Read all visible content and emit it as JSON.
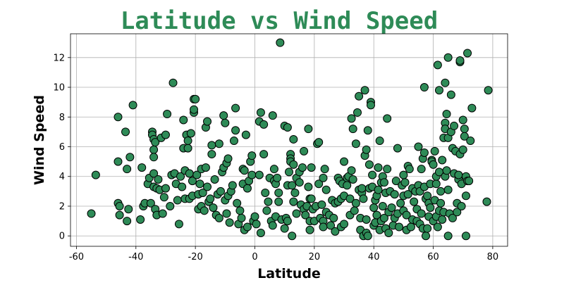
{
  "chart_data": {
    "type": "scatter",
    "title": "Latitude vs Wind Speed",
    "xlabel": "Latitude",
    "ylabel": "Wind Speed",
    "xlim": [
      -62,
      85
    ],
    "ylim": [
      -0.7,
      13.6
    ],
    "xticks": [
      -60,
      -40,
      -20,
      0,
      20,
      40,
      60,
      80
    ],
    "yticks": [
      0,
      2,
      4,
      6,
      8,
      10,
      12
    ],
    "grid": true,
    "colors": {
      "title": "#2e8b57",
      "marker_fill": "#2e8b57",
      "marker_edge": "#000000"
    },
    "points": [
      [
        -55,
        1.5
      ],
      [
        -53.5,
        4.1
      ],
      [
        -46,
        8
      ],
      [
        -46,
        5
      ],
      [
        -46,
        2.2
      ],
      [
        -45.5,
        2.0
      ],
      [
        -45.5,
        1.4
      ],
      [
        -43.5,
        7
      ],
      [
        -43,
        1.0
      ],
      [
        -43,
        4.5
      ],
      [
        -42.5,
        1.8
      ],
      [
        -42,
        5.3
      ],
      [
        -41,
        8.8
      ],
      [
        -38.5,
        1.1
      ],
      [
        -38,
        4.6
      ],
      [
        -37.5,
        2.0
      ],
      [
        -37,
        2.2
      ],
      [
        -36,
        3.5
      ],
      [
        -35.5,
        3.9
      ],
      [
        -35,
        2.2
      ],
      [
        -34.5,
        7.0
      ],
      [
        -34.5,
        6.8
      ],
      [
        -34,
        6.5
      ],
      [
        -34,
        5.8
      ],
      [
        -34,
        5.3
      ],
      [
        -34,
        4.2
      ],
      [
        -34,
        3.3
      ],
      [
        -33.5,
        1.8
      ],
      [
        -33.5,
        6.3
      ],
      [
        -33,
        3.2
      ],
      [
        -33,
        1.4
      ],
      [
        -32.5,
        3.8
      ],
      [
        -32,
        3.1
      ],
      [
        -31.5,
        6.6
      ],
      [
        -31,
        1.5
      ],
      [
        -30.5,
        2.6
      ],
      [
        -30,
        6.8
      ],
      [
        -30,
        3.2
      ],
      [
        -29.5,
        8.2
      ],
      [
        -28.5,
        2.0
      ],
      [
        -28,
        4.1
      ],
      [
        -27.5,
        10.3
      ],
      [
        -27,
        4.2
      ],
      [
        -26.5,
        3.5
      ],
      [
        -26,
        2.4
      ],
      [
        -25.5,
        0.8
      ],
      [
        -25,
        4.0
      ],
      [
        -24.5,
        3.3
      ],
      [
        -24,
        5.9
      ],
      [
        -24,
        7.8
      ],
      [
        -23.5,
        2.5
      ],
      [
        -23.5,
        4.4
      ],
      [
        -23,
        6.8
      ],
      [
        -22.5,
        5.9
      ],
      [
        -22.5,
        6.4
      ],
      [
        -22,
        4.2
      ],
      [
        -22,
        2.5
      ],
      [
        -21.5,
        6.9
      ],
      [
        -21,
        3.7
      ],
      [
        -21,
        2.7
      ],
      [
        -20.5,
        8.3
      ],
      [
        -20.5,
        8.5
      ],
      [
        -20.5,
        9.2
      ],
      [
        -20,
        9.2
      ],
      [
        -19.5,
        4.1
      ],
      [
        -19,
        2.8
      ],
      [
        -19,
        1.8
      ],
      [
        -18.5,
        3.5
      ],
      [
        -18,
        2.0
      ],
      [
        -18,
        4.5
      ],
      [
        -17.5,
        2.9
      ],
      [
        -17,
        1.7
      ],
      [
        -16.5,
        4.6
      ],
      [
        -16.5,
        7.3
      ],
      [
        -16,
        7.7
      ],
      [
        -16,
        3.3
      ],
      [
        -15.5,
        2.3
      ],
      [
        -15,
        2.5
      ],
      [
        -14.5,
        5.5
      ],
      [
        -14.5,
        6.1
      ],
      [
        -14,
        1.9
      ],
      [
        -13.5,
        3.8
      ],
      [
        -13,
        1.4
      ],
      [
        -12.5,
        2.8
      ],
      [
        -12,
        1.2
      ],
      [
        -12,
        6.2
      ],
      [
        -11.5,
        3.0
      ],
      [
        -11,
        4.3
      ],
      [
        -10.5,
        8.1
      ],
      [
        -10.5,
        4.6
      ],
      [
        -10,
        2.4
      ],
      [
        -10,
        7.6
      ],
      [
        -9.5,
        4.9
      ],
      [
        -9.5,
        1.5
      ],
      [
        -9,
        2.7
      ],
      [
        -9,
        5.2
      ],
      [
        -8.5,
        0.9
      ],
      [
        -8,
        3.0
      ],
      [
        -7.5,
        3.4
      ],
      [
        -7,
        6.4
      ],
      [
        -6.5,
        8.6
      ],
      [
        -6.5,
        7.1
      ],
      [
        -6,
        2.2
      ],
      [
        -5.5,
        0.8
      ],
      [
        -5,
        1.7
      ],
      [
        -4.5,
        1.2
      ],
      [
        -4,
        3.5
      ],
      [
        -4,
        4.5
      ],
      [
        -3.5,
        4.4
      ],
      [
        -3.5,
        0.4
      ],
      [
        -3,
        6.8
      ],
      [
        -2.5,
        3.2
      ],
      [
        -2.5,
        0.6
      ],
      [
        -2,
        3.7
      ],
      [
        -1.5,
        5.0
      ],
      [
        -1,
        5.4
      ],
      [
        -1,
        4.1
      ],
      [
        -0.5,
        1.0
      ],
      [
        0,
        1.3
      ],
      [
        0.5,
        0.8
      ],
      [
        1.5,
        4.1
      ],
      [
        1.5,
        7.7
      ],
      [
        2,
        8.3
      ],
      [
        2,
        0.2
      ],
      [
        3,
        7.5
      ],
      [
        3,
        5.5
      ],
      [
        3.5,
        2.9
      ],
      [
        4,
        1.7
      ],
      [
        4.5,
        2.3
      ],
      [
        5,
        3.9
      ],
      [
        5.5,
        1.0
      ],
      [
        6,
        0.7
      ],
      [
        6,
        8.1
      ],
      [
        6.5,
        3.7
      ],
      [
        6.5,
        4.5
      ],
      [
        7,
        3.5
      ],
      [
        7,
        1.3
      ],
      [
        7.5,
        3.9
      ],
      [
        8,
        2.9
      ],
      [
        8,
        2.3
      ],
      [
        9,
        1.1
      ],
      [
        10,
        7.4
      ],
      [
        10,
        0.5
      ],
      [
        10.5,
        1.2
      ],
      [
        11,
        7.3
      ],
      [
        11,
        3.4
      ],
      [
        11,
        1.0
      ],
      [
        11.5,
        4.3
      ],
      [
        12,
        5.5
      ],
      [
        12,
        5.2
      ],
      [
        12,
        5.0
      ],
      [
        12.5,
        0.0
      ],
      [
        12.5,
        3.4
      ],
      [
        13,
        4.8
      ],
      [
        13,
        6.5
      ],
      [
        13,
        2.3
      ],
      [
        13.5,
        2.9
      ],
      [
        14,
        3.9
      ],
      [
        14,
        1.5
      ],
      [
        15,
        4.3
      ],
      [
        15,
        3.6
      ],
      [
        15.5,
        2.1
      ],
      [
        16,
        4.6
      ],
      [
        16.5,
        5.7
      ],
      [
        16.5,
        1.8
      ],
      [
        17,
        1.4
      ],
      [
        17.5,
        2.0
      ],
      [
        18,
        7.2
      ],
      [
        18,
        3.3
      ],
      [
        18.5,
        2.5
      ],
      [
        18.5,
        1.0
      ],
      [
        18.5,
        0.4
      ],
      [
        19,
        4.6
      ],
      [
        19,
        2.5
      ],
      [
        19.5,
        1.8
      ],
      [
        20,
        1.0
      ],
      [
        20.5,
        2.0
      ],
      [
        21,
        6.2
      ],
      [
        21.5,
        6.3
      ],
      [
        21.5,
        3.5
      ],
      [
        22,
        1.2
      ],
      [
        22.5,
        2.1
      ],
      [
        23,
        3.9
      ],
      [
        23,
        1.0
      ],
      [
        23,
        0.6
      ],
      [
        23.5,
        4.5
      ],
      [
        24,
        1.6
      ],
      [
        24,
        3.1
      ],
      [
        25,
        1.4
      ],
      [
        25.5,
        0.7
      ],
      [
        26,
        2.4
      ],
      [
        26.5,
        1.2
      ],
      [
        27,
        0.3
      ],
      [
        27,
        2.2
      ],
      [
        28,
        2.3
      ],
      [
        28,
        3.9
      ],
      [
        28.5,
        3.7
      ],
      [
        29,
        0.6
      ],
      [
        29,
        2.5
      ],
      [
        29.5,
        3.5
      ],
      [
        30,
        0.8
      ],
      [
        30,
        2.7
      ],
      [
        30,
        5.0
      ],
      [
        31,
        3.9
      ],
      [
        31,
        3.4
      ],
      [
        31.5,
        4.0
      ],
      [
        32,
        1.4
      ],
      [
        32,
        2.5
      ],
      [
        32.5,
        7.9
      ],
      [
        32.5,
        4.4
      ],
      [
        33,
        3.8
      ],
      [
        33,
        7.2
      ],
      [
        33.5,
        1.7
      ],
      [
        34,
        2.2
      ],
      [
        34,
        6.2
      ],
      [
        34.5,
        8.3
      ],
      [
        35,
        9.4
      ],
      [
        35,
        3.1
      ],
      [
        35.5,
        0.4
      ],
      [
        35.5,
        1.2
      ],
      [
        36,
        2.9
      ],
      [
        36,
        3.2
      ],
      [
        36.5,
        0.0
      ],
      [
        36.5,
        2.5
      ],
      [
        37,
        5.4
      ],
      [
        37,
        9.8
      ],
      [
        37.5,
        5.8
      ],
      [
        37.5,
        1.1
      ],
      [
        37.5,
        0.2
      ],
      [
        38,
        0.0
      ],
      [
        38,
        7.1
      ],
      [
        38.5,
        4.8
      ],
      [
        38.5,
        3.2
      ],
      [
        39,
        9.0
      ],
      [
        39,
        8.8
      ],
      [
        39.5,
        4.1
      ],
      [
        39.5,
        3.3
      ],
      [
        40,
        1.9
      ],
      [
        40,
        0.7
      ],
      [
        40.5,
        2.4
      ],
      [
        40.5,
        0.9
      ],
      [
        41,
        1.4
      ],
      [
        41,
        2.7
      ],
      [
        41.5,
        4.6
      ],
      [
        41.5,
        3.1
      ],
      [
        42,
        6.4
      ],
      [
        42,
        0.4
      ],
      [
        42.5,
        1.0
      ],
      [
        42.5,
        3.6
      ],
      [
        43,
        4.0
      ],
      [
        43,
        2.0
      ],
      [
        43.5,
        3.6
      ],
      [
        43.5,
        1.2
      ],
      [
        44,
        2.9
      ],
      [
        44,
        0.5
      ],
      [
        44.5,
        7.9
      ],
      [
        44.5,
        4.5
      ],
      [
        45,
        1.6
      ],
      [
        45,
        0.2
      ],
      [
        45.5,
        3.0
      ],
      [
        46,
        1.9
      ],
      [
        46.5,
        0.7
      ],
      [
        47,
        2.8
      ],
      [
        47,
        1.2
      ],
      [
        47.5,
        3.7
      ],
      [
        48,
        1.5
      ],
      [
        48,
        5.9
      ],
      [
        48.5,
        0.6
      ],
      [
        49,
        2.2
      ],
      [
        49.5,
        3.4
      ],
      [
        50,
        2.7
      ],
      [
        50,
        1.7
      ],
      [
        50,
        4.1
      ],
      [
        50.5,
        3.6
      ],
      [
        51,
        0.4
      ],
      [
        51,
        1.4
      ],
      [
        51.5,
        2.8
      ],
      [
        51.5,
        4.7
      ],
      [
        52,
        4.5
      ],
      [
        52.5,
        0.6
      ],
      [
        53,
        3.2
      ],
      [
        53,
        1.1
      ],
      [
        53.5,
        2.3
      ],
      [
        54,
        3.0
      ],
      [
        54.5,
        1.8
      ],
      [
        54.5,
        1.0
      ],
      [
        55,
        6.0
      ],
      [
        55,
        3.4
      ],
      [
        55.5,
        0.8
      ],
      [
        55.5,
        3.0
      ],
      [
        56,
        4.5
      ],
      [
        56,
        1.5
      ],
      [
        56.5,
        5.2
      ],
      [
        56.5,
        0.5
      ],
      [
        57,
        10.0
      ],
      [
        57,
        3.3
      ],
      [
        57,
        5.6
      ],
      [
        57.5,
        2.5
      ],
      [
        57.5,
        0.0
      ],
      [
        58,
        2.7
      ],
      [
        58,
        0.5
      ],
      [
        58.5,
        1.3
      ],
      [
        58.5,
        2.2
      ],
      [
        59,
        3.5
      ],
      [
        59,
        1.9
      ],
      [
        59.5,
        5.1
      ],
      [
        59.5,
        5.0
      ],
      [
        60,
        4.8
      ],
      [
        60,
        1.0
      ],
      [
        60.5,
        5.7
      ],
      [
        60.5,
        2.4
      ],
      [
        61,
        3.5
      ],
      [
        61,
        1.3
      ],
      [
        61,
        4.0
      ],
      [
        61.5,
        11.5
      ],
      [
        61.5,
        0.6
      ],
      [
        62,
        9.8
      ],
      [
        62,
        4.3
      ],
      [
        62,
        1.7
      ],
      [
        62.5,
        2.2
      ],
      [
        62.5,
        3.0
      ],
      [
        63,
        1.1
      ],
      [
        63,
        5.1
      ],
      [
        63.5,
        6.6
      ],
      [
        63.5,
        1.6
      ],
      [
        64,
        10.3
      ],
      [
        64,
        7.6
      ],
      [
        64,
        7.2
      ],
      [
        64,
        4.0
      ],
      [
        64.5,
        8.2
      ],
      [
        64.5,
        4.4
      ],
      [
        65,
        12.0
      ],
      [
        65,
        0.0
      ],
      [
        65,
        3.1
      ],
      [
        65,
        6.6
      ],
      [
        65.5,
        1.5
      ],
      [
        66,
        9.5
      ],
      [
        66,
        7.0
      ],
      [
        66.5,
        5.9
      ],
      [
        66.5,
        1.2
      ],
      [
        67,
        7.4
      ],
      [
        67,
        4.2
      ],
      [
        67.5,
        5.7
      ],
      [
        68,
        1.6
      ],
      [
        68,
        2.2
      ],
      [
        68.5,
        3.8
      ],
      [
        68.5,
        4.1
      ],
      [
        69,
        11.7
      ],
      [
        69,
        11.8
      ],
      [
        69,
        5.5
      ],
      [
        69.5,
        2.0
      ],
      [
        69.5,
        3.5
      ],
      [
        70,
        7.8
      ],
      [
        70,
        5.8
      ],
      [
        70.5,
        7.2
      ],
      [
        70.5,
        6.7
      ],
      [
        71,
        0.0
      ],
      [
        71,
        2.7
      ],
      [
        71,
        4.0
      ],
      [
        71.5,
        3.7
      ],
      [
        71.5,
        12.3
      ],
      [
        72,
        3.7
      ],
      [
        72.5,
        6.4
      ],
      [
        73,
        8.6
      ],
      [
        78,
        2.3
      ],
      [
        78.5,
        9.8
      ],
      [
        8.5,
        13.0
      ]
    ]
  }
}
